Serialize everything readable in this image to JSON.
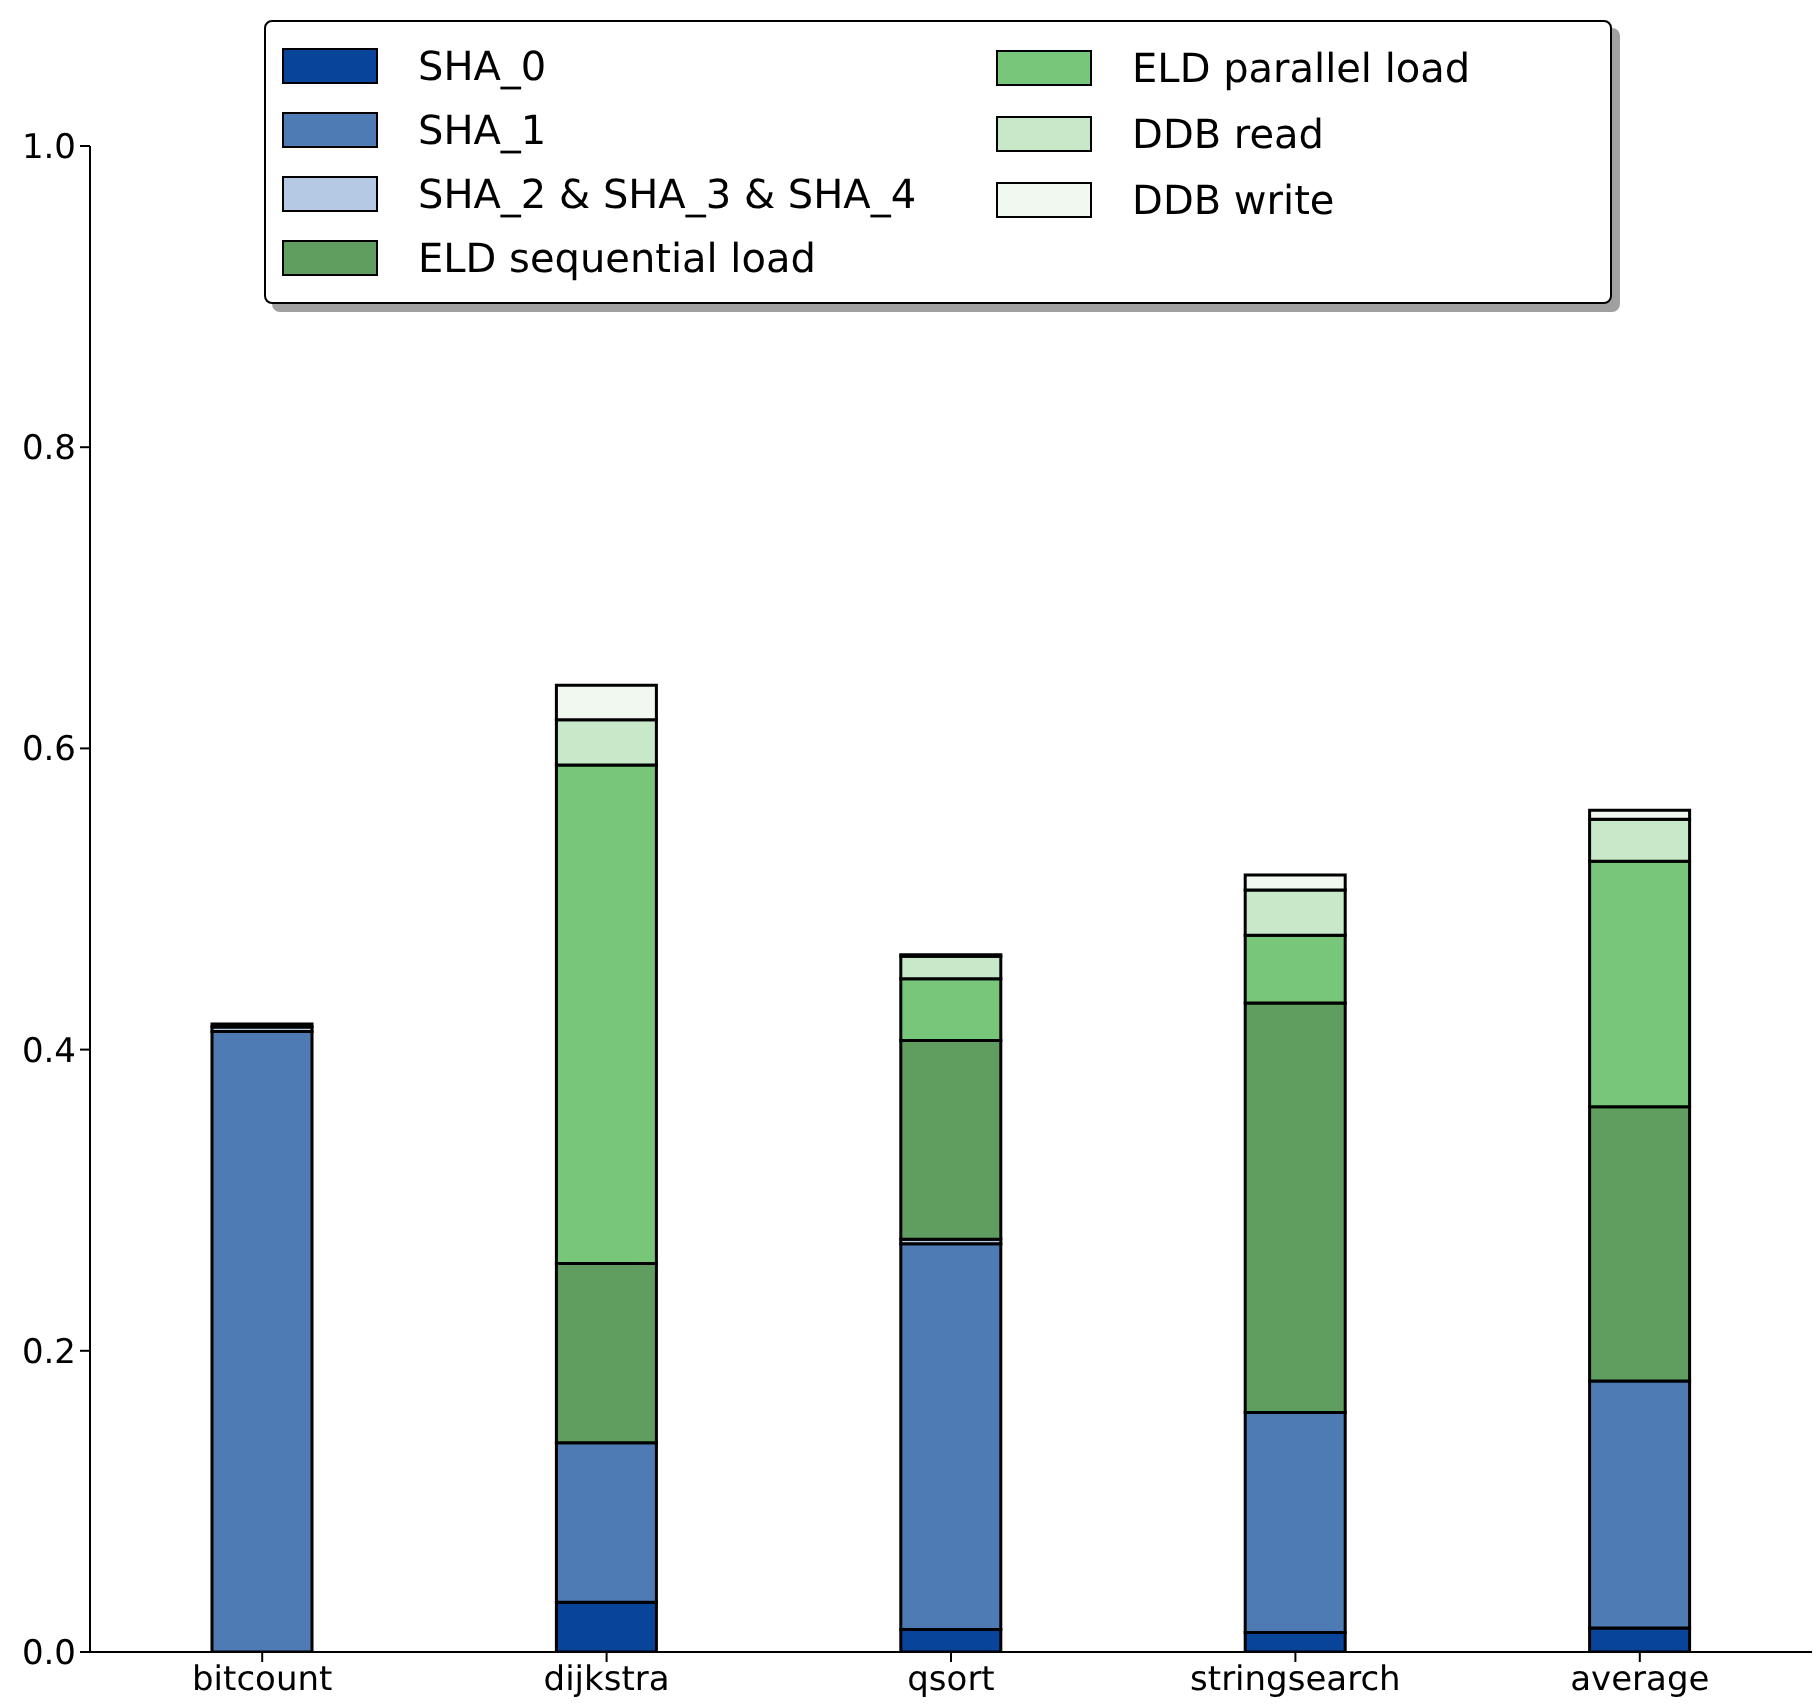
{
  "chart_data": {
    "type": "bar",
    "stacked": true,
    "categories": [
      "bitcount",
      "dijkstra",
      "qsort",
      "stringsearch",
      "average"
    ],
    "series": [
      {
        "name": "SHA_0",
        "color": "#08449a",
        "values": [
          0,
          0.033,
          0.015,
          0.013,
          0.016
        ]
      },
      {
        "name": "SHA_1",
        "color": "#4f7bb4",
        "values": [
          0.412,
          0.106,
          0.256,
          0.146,
          0.164
        ]
      },
      {
        "name": "SHA_2 & SHA_3 & SHA_4",
        "color": "#b5c9e4",
        "values": [
          0.003,
          null,
          0.003,
          0,
          null
        ]
      },
      {
        "name": "ELD sequential load",
        "color": "#5f9e5f",
        "values": [
          0.002,
          0.119,
          0.132,
          0.272,
          0.182
        ]
      },
      {
        "name": "ELD parallel load",
        "color": "#78c679",
        "values": [
          0,
          0.331,
          0.041,
          0.045,
          0.163
        ]
      },
      {
        "name": "DDB read",
        "color": "#c7e9c9",
        "values": [
          0,
          0.03,
          0.015,
          0.03,
          0.028
        ]
      },
      {
        "name": "DDB write",
        "color": "#f0f8ef",
        "values": [
          0,
          0.023,
          0.001,
          0.01,
          0.006
        ]
      }
    ],
    "ylim": [
      0,
      1
    ],
    "yticks": [
      {
        "value": 0,
        "label": "0.0"
      },
      {
        "value": 0.2,
        "label": "0.2"
      },
      {
        "value": 0.4,
        "label": "0.4"
      },
      {
        "value": 0.6,
        "label": "0.6"
      },
      {
        "value": 0.8,
        "label": "0.8"
      },
      {
        "value": 1,
        "label": "1.0"
      }
    ],
    "grid": false,
    "legend": "top"
  }
}
